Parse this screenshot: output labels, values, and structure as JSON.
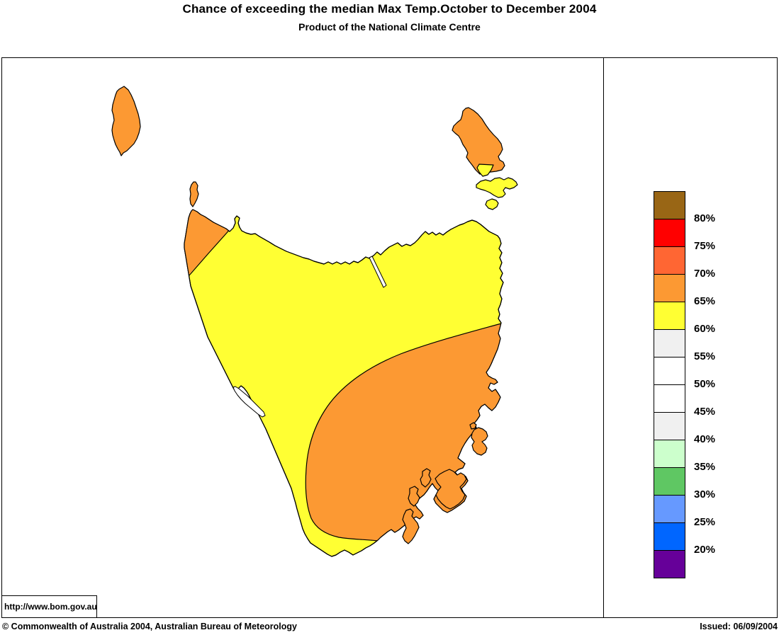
{
  "title": "Chance of exceeding the median Max Temp.October to December 2004",
  "subtitle": "Product of the National Climate Centre",
  "legend": {
    "labels": [
      "80%",
      "75%",
      "70%",
      "65%",
      "60%",
      "55%",
      "50%",
      "45%",
      "40%",
      "35%",
      "30%",
      "25%",
      "20%"
    ],
    "colors": [
      "#996615",
      "#FF0000",
      "#FF6633",
      "#FC9933",
      "#FFFF33",
      "#F0F0F0",
      "#FFFFFF",
      "#FFFFFF",
      "#F0F0F0",
      "#CCFFCC",
      "#5FC763",
      "#6699FF",
      "#0066FF",
      "#660099"
    ]
  },
  "map": {
    "colors": {
      "yellow": "#FFFF33",
      "orange": "#FC9933",
      "water": "#FFFFFF",
      "outline": "#000000"
    },
    "regions": [
      {
        "name": "Tasmania west and north",
        "chance": "60-65%",
        "color_key": "yellow"
      },
      {
        "name": "Tasmania south-east",
        "chance": "65-70%",
        "color_key": "orange"
      },
      {
        "name": "Tasmania far north-west tip",
        "chance": "65-70%",
        "color_key": "orange"
      },
      {
        "name": "South coast strip",
        "chance": "60-65%",
        "color_key": "yellow"
      },
      {
        "name": "King Island",
        "chance": "65-70%",
        "color_key": "orange"
      },
      {
        "name": "Hunter Island",
        "chance": "65-70%",
        "color_key": "orange"
      },
      {
        "name": "Flinders Island",
        "chance": "65-70%",
        "color_key": "orange"
      },
      {
        "name": "Flinders Island southern tip",
        "chance": "60-65%",
        "color_key": "yellow"
      },
      {
        "name": "Cape Barren Island",
        "chance": "60-65%",
        "color_key": "yellow"
      },
      {
        "name": "Clarke Island",
        "chance": "60-65%",
        "color_key": "yellow"
      },
      {
        "name": "Maria Island",
        "chance": "65-70%",
        "color_key": "orange"
      },
      {
        "name": "Tasman Peninsula",
        "chance": "65-70%",
        "color_key": "orange"
      },
      {
        "name": "Bruny Island",
        "chance": "65-70%",
        "color_key": "orange"
      }
    ]
  },
  "footer": {
    "url": "http://www.bom.gov.au",
    "copyright": "© Commonwealth of Australia 2004, Australian Bureau of Meteorology",
    "issued": "Issued: 06/09/2004"
  }
}
